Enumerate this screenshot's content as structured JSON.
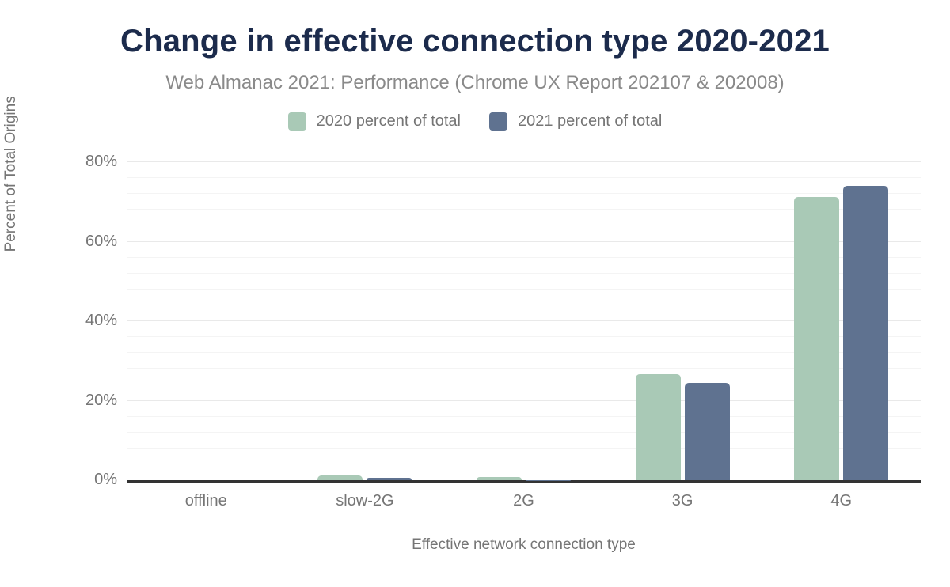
{
  "chart_data": {
    "type": "bar",
    "title": "Change in effective connection type 2020-2021",
    "subtitle": "Web Almanac 2021: Performance (Chrome UX Report 202107 & 202008)",
    "xlabel": "Effective network connection type",
    "ylabel": "Percent of Total Origins",
    "categories": [
      "offline",
      "slow-2G",
      "2G",
      "3G",
      "4G"
    ],
    "series": [
      {
        "name": "2020 percent of total",
        "color": "#a9c9b6",
        "values": [
          0.0,
          1.1,
          0.8,
          26.6,
          71.3
        ]
      },
      {
        "name": "2021 percent of total",
        "color": "#5f7290",
        "values": [
          0.0,
          0.6,
          0.1,
          24.4,
          74.0
        ]
      }
    ],
    "y_ticks": [
      "0%",
      "20%",
      "40%",
      "60%",
      "80%"
    ],
    "ylim": [
      0,
      80
    ],
    "grid": {
      "horizontal": true,
      "minor_step_pct": 4,
      "major_step_pct": 20
    },
    "legend_position": "top",
    "colors": {
      "title": "#1c2b4c",
      "subtitle": "#8a8a8a",
      "axis_text": "#757575",
      "axis_line": "#333333"
    }
  }
}
